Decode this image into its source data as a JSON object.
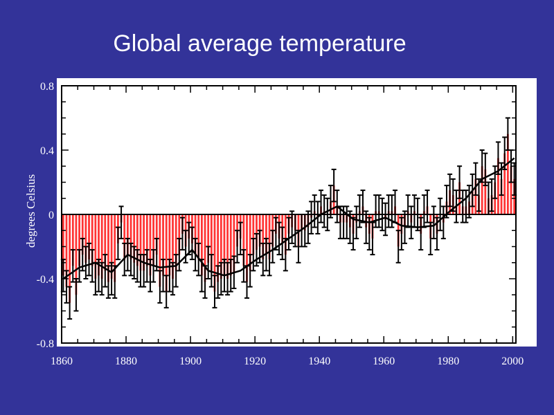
{
  "title": "Global average temperature",
  "chart_data": {
    "type": "bar",
    "title": "Global average temperature",
    "xlabel": "",
    "ylabel": "degrees Celsius",
    "xlim": [
      1860,
      2001
    ],
    "ylim": [
      -0.8,
      0.8
    ],
    "x_ticks": [
      "1860",
      "1880",
      "1900",
      "1920",
      "1940",
      "1960",
      "1980",
      "2000"
    ],
    "y_ticks": [
      "0.8",
      "0.4",
      "0",
      "-0.4",
      "-0.8"
    ],
    "grid": false,
    "legend": "none",
    "colors": {
      "bar": "#ff3333",
      "error_bar": "#000000",
      "smooth_line": "#000000",
      "baseline": "#000000",
      "plot_background": "#ffffff"
    },
    "series": [
      {
        "kind": "annual_anomaly_bars",
        "x": [
          1860,
          1861,
          1862,
          1863,
          1864,
          1865,
          1866,
          1867,
          1868,
          1869,
          1870,
          1871,
          1872,
          1873,
          1874,
          1875,
          1876,
          1877,
          1878,
          1879,
          1880,
          1881,
          1882,
          1883,
          1884,
          1885,
          1886,
          1887,
          1888,
          1889,
          1890,
          1891,
          1892,
          1893,
          1894,
          1895,
          1896,
          1897,
          1898,
          1899,
          1900,
          1901,
          1902,
          1903,
          1904,
          1905,
          1906,
          1907,
          1908,
          1909,
          1910,
          1911,
          1912,
          1913,
          1914,
          1915,
          1916,
          1917,
          1918,
          1919,
          1920,
          1921,
          1922,
          1923,
          1924,
          1925,
          1926,
          1927,
          1928,
          1929,
          1930,
          1931,
          1932,
          1933,
          1934,
          1935,
          1936,
          1937,
          1938,
          1939,
          1940,
          1941,
          1942,
          1943,
          1944,
          1945,
          1946,
          1947,
          1948,
          1949,
          1950,
          1951,
          1952,
          1953,
          1954,
          1955,
          1956,
          1957,
          1958,
          1959,
          1960,
          1961,
          1962,
          1963,
          1964,
          1965,
          1966,
          1967,
          1968,
          1969,
          1970,
          1971,
          1972,
          1973,
          1974,
          1975,
          1976,
          1977,
          1978,
          1979,
          1980,
          1981,
          1982,
          1983,
          1984,
          1985,
          1986,
          1987,
          1988,
          1989,
          1990,
          1991,
          1992,
          1993,
          1994,
          1995,
          1996,
          1997,
          1998,
          1999,
          2000
        ],
        "values": [
          -0.38,
          -0.45,
          -0.55,
          -0.32,
          -0.5,
          -0.32,
          -0.25,
          -0.3,
          -0.28,
          -0.32,
          -0.4,
          -0.38,
          -0.4,
          -0.35,
          -0.42,
          -0.4,
          -0.42,
          -0.18,
          -0.05,
          -0.28,
          -0.25,
          -0.28,
          -0.3,
          -0.32,
          -0.35,
          -0.35,
          -0.32,
          -0.38,
          -0.32,
          -0.25,
          -0.45,
          -0.38,
          -0.48,
          -0.38,
          -0.4,
          -0.35,
          -0.25,
          -0.12,
          -0.2,
          -0.15,
          -0.18,
          -0.25,
          -0.28,
          -0.38,
          -0.42,
          -0.3,
          -0.35,
          -0.48,
          -0.42,
          -0.4,
          -0.38,
          -0.4,
          -0.38,
          -0.36,
          -0.2,
          -0.15,
          -0.32,
          -0.42,
          -0.35,
          -0.25,
          -0.22,
          -0.2,
          -0.28,
          -0.25,
          -0.28,
          -0.2,
          -0.12,
          -0.15,
          -0.18,
          -0.25,
          -0.12,
          -0.08,
          -0.1,
          -0.2,
          -0.1,
          -0.1,
          -0.08,
          -0.02,
          0.02,
          -0.02,
          0.05,
          0.02,
          0.0,
          0.08,
          0.18,
          0.05,
          -0.05,
          -0.05,
          -0.05,
          -0.08,
          -0.12,
          -0.05,
          0.02,
          0.05,
          -0.08,
          -0.12,
          -0.15,
          0.02,
          0.02,
          0.0,
          -0.03,
          0.02,
          0.02,
          0.05,
          -0.2,
          -0.12,
          -0.08,
          0.02,
          -0.05,
          0.02,
          0.0,
          -0.12,
          0.02,
          0.05,
          -0.15,
          -0.05,
          -0.12,
          0.0,
          -0.05,
          0.08,
          0.15,
          0.12,
          0.05,
          0.2,
          0.05,
          0.05,
          0.08,
          0.15,
          0.22,
          0.12,
          0.3,
          0.28,
          0.1,
          0.12,
          0.2,
          0.35,
          0.22,
          0.38,
          0.5,
          0.3,
          0.22
        ]
      },
      {
        "kind": "smoothed_curve",
        "x": [
          1860,
          1865,
          1870,
          1875,
          1880,
          1885,
          1890,
          1895,
          1900,
          1905,
          1910,
          1915,
          1920,
          1925,
          1930,
          1935,
          1940,
          1945,
          1950,
          1955,
          1960,
          1965,
          1970,
          1975,
          1980,
          1985,
          1990,
          1995,
          2000
        ],
        "values": [
          -0.4,
          -0.33,
          -0.3,
          -0.36,
          -0.25,
          -0.3,
          -0.33,
          -0.32,
          -0.22,
          -0.35,
          -0.38,
          -0.35,
          -0.28,
          -0.22,
          -0.15,
          -0.08,
          0.0,
          0.05,
          -0.03,
          -0.05,
          -0.02,
          -0.07,
          -0.08,
          -0.07,
          0.02,
          0.1,
          0.22,
          0.27,
          0.35
        ]
      }
    ],
    "error_bar_halfwidth": 0.1
  }
}
